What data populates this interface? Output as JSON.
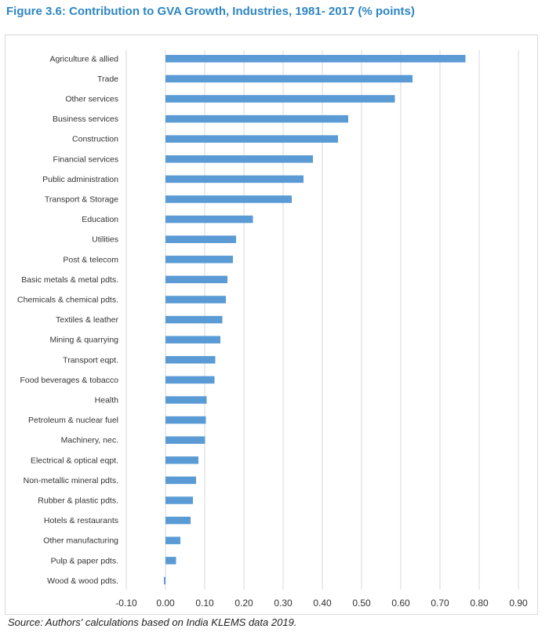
{
  "figure_title": "Figure 3.6: Contribution to GVA Growth, Industries, 1981- 2017 (% points)",
  "source_note": "Source: Authors' calculations based on India KLEMS data 2019.",
  "colors": {
    "title": "#2e86c1",
    "bar": "#5b9bd5",
    "grid": "#d9d9d9"
  },
  "chart_data": {
    "type": "bar",
    "orientation": "horizontal",
    "title": "Figure 3.6: Contribution to GVA Growth, Industries, 1981- 2017 (% points)",
    "xlabel": "",
    "ylabel": "",
    "xlim": [
      -0.1,
      0.9
    ],
    "grid": true,
    "ticks": [
      -0.1,
      0.0,
      0.1,
      0.2,
      0.3,
      0.4,
      0.5,
      0.6,
      0.7,
      0.8,
      0.9
    ],
    "tick_labels": [
      "-0.10",
      "0.00",
      "0.10",
      "0.20",
      "0.30",
      "0.40",
      "0.50",
      "0.60",
      "0.70",
      "0.80",
      "0.90"
    ],
    "categories": [
      "Agriculture & allied",
      "Trade",
      "Other services",
      "Business services",
      "Construction",
      "Financial services",
      "Public administration",
      "Transport & Storage",
      "Education",
      "Utilities",
      "Post & telecom",
      "Basic metals & metal pdts.",
      "Chemicals & chemical pdts.",
      "Textiles & leather",
      "Mining & quarrying",
      "Transport eqpt.",
      "Food beverages & tobacco",
      "Health",
      "Petroleum & nuclear fuel",
      "Machinery, nec.",
      "Electrical & optical eqpt.",
      "Non-metallic mineral pdts.",
      "Rubber & plastic pdts.",
      "Hotels & restaurants",
      "Other manufacturing",
      "Pulp & paper pdts.",
      "Wood & wood pdts."
    ],
    "values": [
      0.765,
      0.63,
      0.585,
      0.466,
      0.44,
      0.376,
      0.352,
      0.322,
      0.223,
      0.18,
      0.172,
      0.158,
      0.154,
      0.145,
      0.14,
      0.127,
      0.125,
      0.105,
      0.103,
      0.101,
      0.084,
      0.078,
      0.07,
      0.064,
      0.038,
      0.027,
      -0.004
    ]
  }
}
